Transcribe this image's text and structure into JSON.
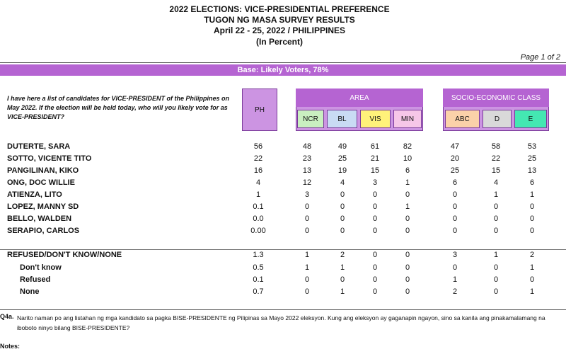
{
  "header": {
    "title": [
      "2022 ELECTIONS: VICE-PRESIDENTIAL PREFERENCE",
      "TUGON NG MASA SURVEY RESULTS",
      "April 22 - 25, 2022 / PHILIPPINES",
      "(In Percent)"
    ],
    "page": "Page 1 of 2",
    "base": "Base: Likely Voters, 78%"
  },
  "table": {
    "question": "I have here a list of candidates for VICE-PRESIDENT of the Philippines on May 2022. If the election will be held today, who will you likely vote for as VICE-PRESIDENT?",
    "ph": "PH",
    "groups": [
      {
        "label": "AREA",
        "columns": [
          "NCR",
          "BL",
          "VIS",
          "MIN"
        ]
      },
      {
        "label": "SOCIO-ECONOMIC CLASS",
        "columns": [
          "ABC",
          "D",
          "E"
        ]
      }
    ],
    "rows": [
      {
        "label": "DUTERTE, SARA",
        "values": [
          "56",
          "48",
          "49",
          "61",
          "82",
          "47",
          "58",
          "53"
        ]
      },
      {
        "label": "SOTTO, VICENTE TITO",
        "values": [
          "22",
          "23",
          "25",
          "21",
          "10",
          "20",
          "22",
          "25"
        ]
      },
      {
        "label": "PANGILINAN, KIKO",
        "values": [
          "16",
          "13",
          "19",
          "15",
          "6",
          "25",
          "15",
          "13"
        ]
      },
      {
        "label": "ONG, DOC WILLIE",
        "values": [
          "4",
          "12",
          "4",
          "3",
          "1",
          "6",
          "4",
          "6"
        ]
      },
      {
        "label": "ATIENZA, LITO",
        "values": [
          "1",
          "3",
          "0",
          "0",
          "0",
          "0",
          "1",
          "1"
        ]
      },
      {
        "label": "LOPEZ, MANNY SD",
        "values": [
          "0.1",
          "0",
          "0",
          "0",
          "1",
          "0",
          "0",
          "0"
        ]
      },
      {
        "label": "BELLO, WALDEN",
        "values": [
          "0.0",
          "0",
          "0",
          "0",
          "0",
          "0",
          "0",
          "0"
        ]
      },
      {
        "label": "SERAPIO, CARLOS",
        "values": [
          "0.00",
          "0",
          "0",
          "0",
          "0",
          "0",
          "0",
          "0"
        ]
      }
    ],
    "summary": {
      "label": "REFUSED/DON'T KNOW/NONE",
      "values": [
        "1.3",
        "1",
        "2",
        "0",
        "0",
        "3",
        "1",
        "2"
      ],
      "breakdown": [
        {
          "label": "Don't know",
          "values": [
            "0.5",
            "1",
            "1",
            "0",
            "0",
            "0",
            "0",
            "1"
          ]
        },
        {
          "label": "Refused",
          "values": [
            "0.1",
            "0",
            "0",
            "0",
            "0",
            "1",
            "0",
            "0"
          ]
        },
        {
          "label": "None",
          "values": [
            "0.7",
            "0",
            "1",
            "0",
            "0",
            "2",
            "0",
            "1"
          ]
        }
      ]
    }
  },
  "footer": {
    "question_id": "Q4a.",
    "question_text": "Narito naman po ang listahan ng mga kandidato sa pagka BISE-PRESIDENTE ng Pilipinas sa Mayo 2022 eleksyon. Kung ang eleksyon ay gaganapin ngayon, sino sa kanila ang pinakamalamang na iboboto ninyo bilang BISE-PRESIDENTE?",
    "notes": "Notes:"
  }
}
